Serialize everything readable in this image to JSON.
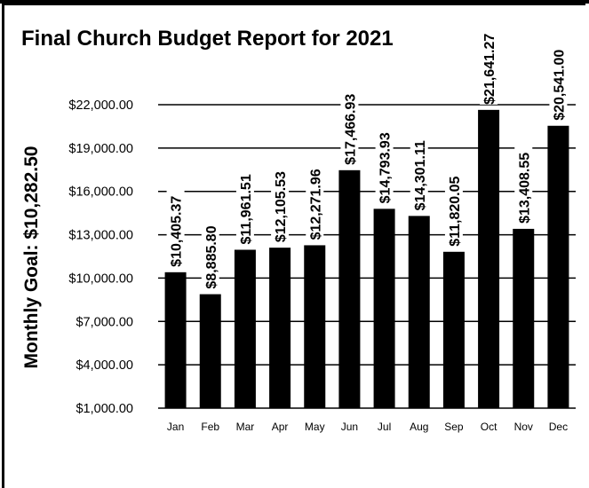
{
  "chart_data": {
    "type": "bar",
    "title": "Final Church Budget Report for 2021",
    "ylabel": "Monthly Goal:  $10,282.50",
    "xlabel": "",
    "categories": [
      "Jan",
      "Feb",
      "Mar",
      "Apr",
      "May",
      "Jun",
      "Jul",
      "Aug",
      "Sep",
      "Oct",
      "Nov",
      "Dec"
    ],
    "values": [
      10405.37,
      8885.8,
      11961.51,
      12105.53,
      12271.96,
      17466.93,
      14793.93,
      14301.11,
      11820.05,
      21641.27,
      13408.55,
      20541.0
    ],
    "data_labels": [
      "$10,405.37",
      "$8,885.80",
      "$11,961.51",
      "$12,105.53",
      "$12,271.96",
      "$17,466.93",
      "$14,793.93",
      "$14,301.11",
      "$11,820.05",
      "$21,641.27",
      "$13,408.55",
      "$20,541.00"
    ],
    "y_ticks": [
      1000,
      4000,
      7000,
      10000,
      13000,
      16000,
      19000,
      22000
    ],
    "y_tick_labels": [
      "$1,000.00",
      "$4,000.00",
      "$7,000.00",
      "$10,000.00",
      "$13,000.00",
      "$16,000.00",
      "$19,000.00",
      "$22,000.00"
    ],
    "ylim": [
      1000,
      22000
    ],
    "grid": true,
    "legend": "none",
    "bar_color": "#000000"
  }
}
